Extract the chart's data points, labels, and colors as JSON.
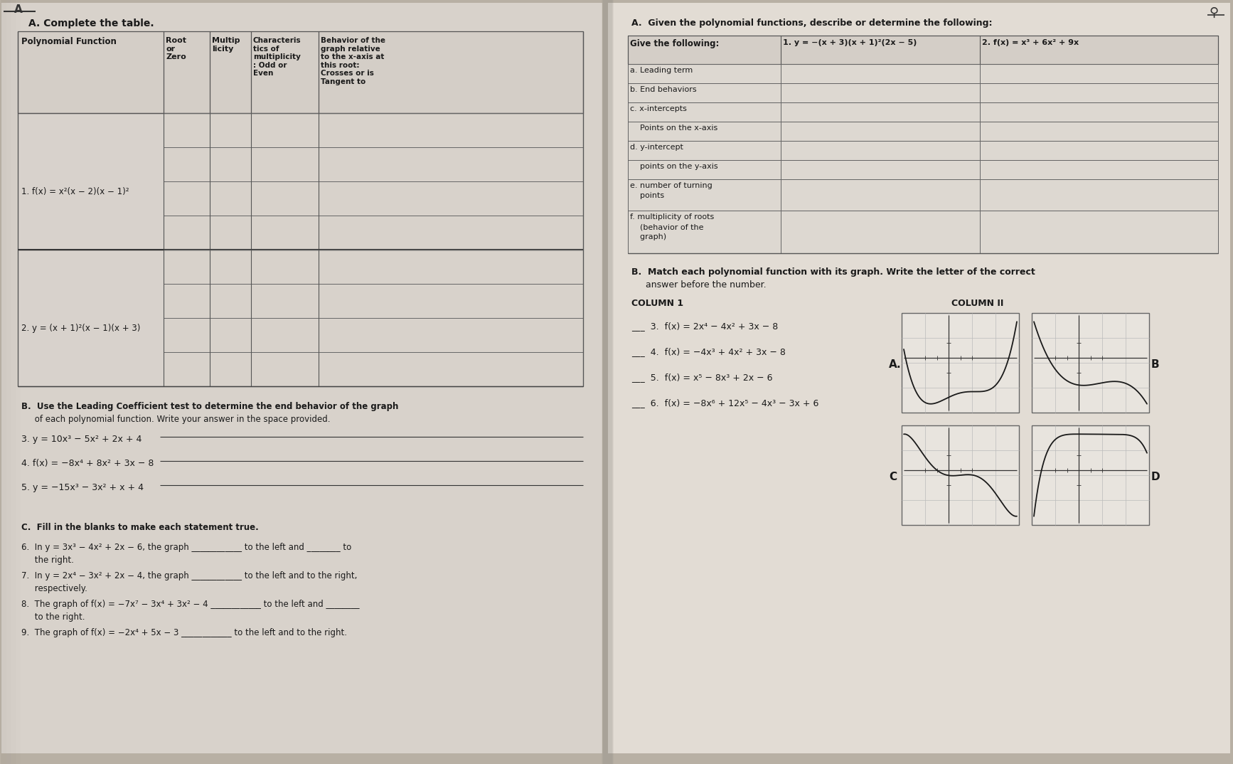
{
  "bg_color": "#b8b0a4",
  "left_page_color": "#d8d2cb",
  "right_page_color": "#e2dcd4",
  "table_bg": "#dbd5ce",
  "line_color": "#555555",
  "text_color": "#1a1a1a",
  "graph_bg": "#e8e4de",
  "title_left": "A. Complete the table.",
  "left_col1_header": "Polynomial Function",
  "left_col2_header": "Root\nor\nZero",
  "left_col3_header": "Multip\nlicity",
  "left_col4_header": "Characteris\ntics of\nmultiplicity\n: Odd or\nEven",
  "left_col5_header": "Behavior of the\ngraph relative\nto the x-axis at\nthis root:\nCrosses or is\nTangent to",
  "row1_func_line1": "1. f(x) = x²(x − 2)(x − 1)²",
  "row2_func_line1": "2. y = (x + 1)²(x − 1)(x + 3)",
  "section_B_left_1": "B.  Use the Leading Coefficient test to determine the end behavior of the graph",
  "section_B_left_2": "     of each polynomial function. Write your answer in the space provided.",
  "b_items": [
    "3. y = 10x³ − 5x² + 2x + 4",
    "4. f(x) = −8x⁴ + 8x² + 3x − 8",
    "5. y = −15x³ − 3x² + x + 4"
  ],
  "section_C_left": "C.  Fill in the blanks to make each statement true.",
  "c_items": [
    [
      "6.  In y = 3x³ − 4x² + 2x − 6, the graph ____________ to the left and ________ to",
      "     the right."
    ],
    [
      "7.  In y = 2x⁴ − 3x² + 2x − 4, the graph ____________ to the left and to the right,",
      "     respectively."
    ],
    [
      "8.  The graph of f(x) = −7x⁷ − 3x⁴ + 3x² − 4 ____________ to the left and ________",
      "     to the right."
    ],
    [
      "9.  The graph of f(x) = −2x⁴ + 5x − 3 ____________ to the left and to the right."
    ]
  ],
  "right_title": "A.  Given the polynomial functions, describe or determine the following:",
  "right_col1_header": "Give the following:",
  "right_col2_header": "1. y = −(x + 3)(x + 1)²(2x − 5)",
  "right_col3_header": "2. f(x) = x³ + 6x² + 9x",
  "right_rows": [
    [
      "a. Leading term",
      1
    ],
    [
      "b. End behaviors",
      1
    ],
    [
      "c. x-intercepts",
      1
    ],
    [
      "    Points on the x-axis",
      1
    ],
    [
      "d. y-intercept",
      1
    ],
    [
      "    points on the y-axis",
      1
    ],
    [
      "e. number of turning\n    points",
      2
    ],
    [
      "f. multiplicity of roots\n    (behavior of the\n    graph)",
      3
    ]
  ],
  "right_B_title_1": "B.  Match each polynomial function with its graph. Write the letter of the correct",
  "right_B_title_2": "     answer before the number.",
  "col1_label": "COLUMN 1",
  "col2_label": "COLUMN II",
  "match_items": [
    "___  3.  f(x) = 2x⁴ − 4x² + 3x − 8",
    "___  4.  f(x) = −4x³ + 4x² + 3x − 8",
    "___  5.  f(x) = x⁵ − 8x³ + 2x − 6",
    "___  6.  f(x) = −8x⁶ + 12x⁵ − 4x³ − 3x + 6"
  ],
  "graph_labels": [
    "A.",
    "B",
    "C",
    "D"
  ]
}
